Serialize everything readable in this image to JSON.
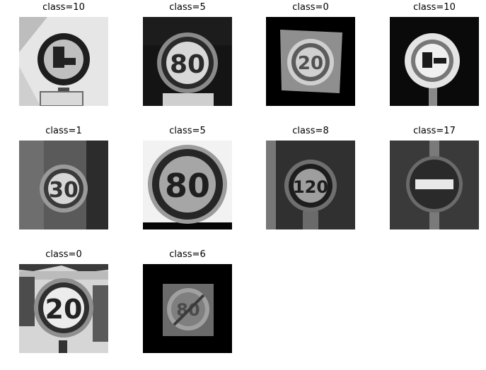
{
  "figure": {
    "panels": [
      {
        "title": "class=10",
        "sign_text": "",
        "sign_kind": "no-overtaking-trucks"
      },
      {
        "title": "class=5",
        "sign_text": "80",
        "sign_kind": "speed-limit"
      },
      {
        "title": "class=0",
        "sign_text": "20",
        "sign_kind": "speed-limit"
      },
      {
        "title": "class=10",
        "sign_text": "",
        "sign_kind": "no-overtaking-trucks"
      },
      {
        "title": "class=1",
        "sign_text": "30",
        "sign_kind": "speed-limit"
      },
      {
        "title": "class=5",
        "sign_text": "80",
        "sign_kind": "speed-limit"
      },
      {
        "title": "class=8",
        "sign_text": "120",
        "sign_kind": "speed-limit"
      },
      {
        "title": "class=17",
        "sign_text": "",
        "sign_kind": "no-entry"
      },
      {
        "title": "class=0",
        "sign_text": "20",
        "sign_kind": "speed-limit"
      },
      {
        "title": "class=6",
        "sign_text": "80",
        "sign_kind": "end-speed-limit"
      }
    ]
  }
}
